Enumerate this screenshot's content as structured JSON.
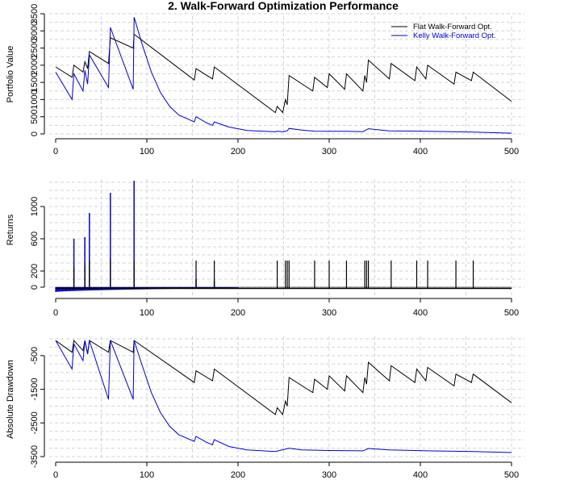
{
  "title": "2. Walk-Forward Optimization Performance",
  "colors": {
    "flat": "#000000",
    "kelly": "#0000CD",
    "grid": "#d3d3d3"
  },
  "legend": {
    "flat": "Flat Walk-Forward Opt.",
    "kelly": "Kelly Walk-Forward Opt."
  },
  "chart_data": [
    {
      "id": "portfolio",
      "type": "line",
      "title": "2. Walk-Forward Optimization Performance",
      "xlabel": "",
      "ylabel": "Portfolio Value",
      "xlim": [
        0,
        500
      ],
      "ylim": [
        0,
        3500
      ],
      "xticks": [
        0,
        100,
        200,
        300,
        400,
        500
      ],
      "yticks": [
        0,
        500,
        1000,
        1500,
        2000,
        2500,
        3000,
        3500
      ],
      "series": [
        {
          "name": "Flat Walk-Forward Opt.",
          "color": "#000000",
          "points": [
            [
              0,
              1950
            ],
            [
              18,
              1650
            ],
            [
              20,
              2000
            ],
            [
              30,
              1800
            ],
            [
              32,
              2100
            ],
            [
              35,
              1900
            ],
            [
              37,
              2400
            ],
            [
              58,
              2050
            ],
            [
              60,
              2800
            ],
            [
              85,
              2500
            ],
            [
              86,
              2900
            ],
            [
              152,
              1570
            ],
            [
              154,
              1900
            ],
            [
              172,
              1600
            ],
            [
              174,
              1950
            ],
            [
              241,
              620
            ],
            [
              243,
              800
            ],
            [
              249,
              620
            ],
            [
              252,
              1000
            ],
            [
              254,
              850
            ],
            [
              256,
              1700
            ],
            [
              282,
              1250
            ],
            [
              284,
              1650
            ],
            [
              298,
              1350
            ],
            [
              300,
              1750
            ],
            [
              317,
              1300
            ],
            [
              319,
              1750
            ],
            [
              337,
              1250
            ],
            [
              339,
              1700
            ],
            [
              341,
              1500
            ],
            [
              343,
              2150
            ],
            [
              366,
              1600
            ],
            [
              368,
              2050
            ],
            [
              394,
              1550
            ],
            [
              396,
              1950
            ],
            [
              406,
              1600
            ],
            [
              408,
              2000
            ],
            [
              437,
              1450
            ],
            [
              439,
              1800
            ],
            [
              456,
              1550
            ],
            [
              458,
              1800
            ],
            [
              500,
              950
            ]
          ]
        },
        {
          "name": "Kelly Walk-Forward Opt.",
          "color": "#0000CD",
          "points": [
            [
              0,
              1800
            ],
            [
              18,
              1000
            ],
            [
              20,
              1750
            ],
            [
              30,
              1250
            ],
            [
              32,
              1850
            ],
            [
              35,
              1450
            ],
            [
              37,
              2300
            ],
            [
              58,
              1350
            ],
            [
              60,
              3100
            ],
            [
              85,
              1300
            ],
            [
              86,
              3400
            ],
            [
              95,
              2600
            ],
            [
              105,
              1800
            ],
            [
              115,
              1200
            ],
            [
              125,
              800
            ],
            [
              135,
              550
            ],
            [
              152,
              350
            ],
            [
              154,
              500
            ],
            [
              165,
              330
            ],
            [
              172,
              250
            ],
            [
              174,
              350
            ],
            [
              190,
              200
            ],
            [
              210,
              100
            ],
            [
              241,
              60
            ],
            [
              243,
              80
            ],
            [
              249,
              60
            ],
            [
              252,
              80
            ],
            [
              254,
              90
            ],
            [
              256,
              160
            ],
            [
              270,
              110
            ],
            [
              284,
              80
            ],
            [
              300,
              75
            ],
            [
              319,
              75
            ],
            [
              337,
              65
            ],
            [
              343,
              150
            ],
            [
              366,
              90
            ],
            [
              396,
              80
            ],
            [
              408,
              75
            ],
            [
              439,
              60
            ],
            [
              458,
              55
            ],
            [
              500,
              20
            ]
          ]
        }
      ]
    },
    {
      "id": "returns",
      "type": "bar",
      "xlabel": "",
      "ylabel": "Returns",
      "xlim": [
        0,
        500
      ],
      "ylim": [
        -100,
        1300
      ],
      "xticks": [
        0,
        100,
        200,
        300,
        400,
        500
      ],
      "yticks": [
        0,
        200,
        600,
        1000
      ],
      "gridlines": [
        0,
        100,
        200,
        300,
        400,
        500,
        600,
        700,
        800,
        900,
        1000,
        1100,
        1200,
        1300
      ],
      "series": [
        {
          "name": "Flat Walk-Forward Opt.",
          "color": "#000000",
          "spikes": [
            [
              20,
              250
            ],
            [
              32,
              280
            ],
            [
              37,
              330
            ],
            [
              60,
              350
            ],
            [
              86,
              330
            ],
            [
              154,
              330
            ],
            [
              174,
              330
            ],
            [
              243,
              330
            ],
            [
              252,
              330
            ],
            [
              254,
              330
            ],
            [
              256,
              330
            ],
            [
              284,
              330
            ],
            [
              300,
              330
            ],
            [
              319,
              330
            ],
            [
              339,
              330
            ],
            [
              341,
              330
            ],
            [
              343,
              330
            ],
            [
              368,
              330
            ],
            [
              396,
              330
            ],
            [
              408,
              330
            ],
            [
              439,
              330
            ],
            [
              458,
              330
            ]
          ],
          "baseline": -15
        },
        {
          "name": "Kelly Walk-Forward Opt.",
          "color": "#0000CD",
          "spikes": [
            [
              20,
              600
            ],
            [
              32,
              620
            ],
            [
              37,
              920
            ],
            [
              60,
              1170
            ],
            [
              86,
              1320
            ],
            [
              154,
              100
            ],
            [
              174,
              80
            ]
          ],
          "negative_decay": {
            "start": -60,
            "end": -8,
            "range": [
              0,
              200
            ]
          }
        }
      ]
    },
    {
      "id": "drawdown",
      "type": "line",
      "xlabel": "",
      "ylabel": "Absolute Drawdown",
      "xlim": [
        0,
        500
      ],
      "ylim": [
        -3500,
        0
      ],
      "xticks": [
        0,
        100,
        200,
        300,
        400,
        500
      ],
      "yticks": [
        -500,
        -1500,
        -2500,
        -3500
      ],
      "series": [
        {
          "name": "Flat Walk-Forward Opt.",
          "color": "#000000",
          "points": [
            [
              0,
              -50
            ],
            [
              18,
              -400
            ],
            [
              20,
              -50
            ],
            [
              30,
              -350
            ],
            [
              32,
              -50
            ],
            [
              35,
              -450
            ],
            [
              37,
              -50
            ],
            [
              58,
              -400
            ],
            [
              60,
              -50
            ],
            [
              85,
              -400
            ],
            [
              86,
              -50
            ],
            [
              152,
              -1300
            ],
            [
              154,
              -950
            ],
            [
              172,
              -1250
            ],
            [
              174,
              -900
            ],
            [
              241,
              -2250
            ],
            [
              243,
              -2050
            ],
            [
              249,
              -2250
            ],
            [
              252,
              -1850
            ],
            [
              254,
              -2000
            ],
            [
              256,
              -1150
            ],
            [
              282,
              -1600
            ],
            [
              284,
              -1200
            ],
            [
              298,
              -1500
            ],
            [
              300,
              -1100
            ],
            [
              317,
              -1550
            ],
            [
              319,
              -1100
            ],
            [
              337,
              -1600
            ],
            [
              339,
              -1150
            ],
            [
              341,
              -1350
            ],
            [
              343,
              -700
            ],
            [
              366,
              -1250
            ],
            [
              368,
              -800
            ],
            [
              394,
              -1300
            ],
            [
              396,
              -900
            ],
            [
              406,
              -1250
            ],
            [
              408,
              -850
            ],
            [
              437,
              -1400
            ],
            [
              439,
              -1050
            ],
            [
              456,
              -1300
            ],
            [
              458,
              -1050
            ],
            [
              500,
              -1900
            ]
          ]
        },
        {
          "name": "Kelly Walk-Forward Opt.",
          "color": "#0000CD",
          "points": [
            [
              0,
              -50
            ],
            [
              18,
              -900
            ],
            [
              20,
              -150
            ],
            [
              30,
              -650
            ],
            [
              32,
              -50
            ],
            [
              35,
              -450
            ],
            [
              37,
              -50
            ],
            [
              58,
              -1800
            ],
            [
              60,
              -50
            ],
            [
              85,
              -1800
            ],
            [
              86,
              -50
            ],
            [
              95,
              -800
            ],
            [
              105,
              -1600
            ],
            [
              115,
              -2200
            ],
            [
              125,
              -2600
            ],
            [
              135,
              -2850
            ],
            [
              152,
              -3050
            ],
            [
              154,
              -2900
            ],
            [
              165,
              -3070
            ],
            [
              172,
              -3150
            ],
            [
              174,
              -3000
            ],
            [
              190,
              -3200
            ],
            [
              210,
              -3300
            ],
            [
              241,
              -3350
            ],
            [
              256,
              -3250
            ],
            [
              270,
              -3300
            ],
            [
              300,
              -3320
            ],
            [
              337,
              -3330
            ],
            [
              343,
              -3260
            ],
            [
              366,
              -3300
            ],
            [
              408,
              -3330
            ],
            [
              458,
              -3350
            ],
            [
              500,
              -3380
            ]
          ]
        }
      ]
    }
  ]
}
